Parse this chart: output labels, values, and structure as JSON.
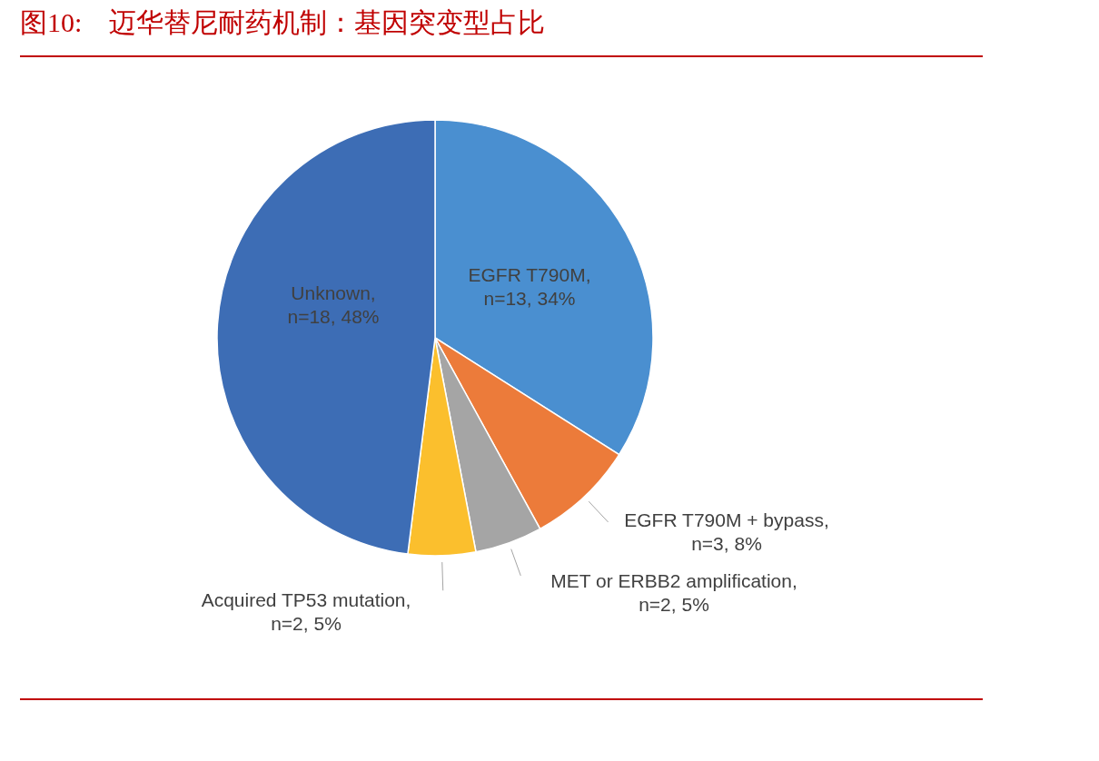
{
  "chart_data": {
    "type": "pie",
    "title": "图10:　迈华替尼耐药机制：基因突变型占比",
    "categories": [
      "EGFR T790M, n=13, 34%",
      "EGFR T790M + bypass, n=3, 8%",
      "MET or ERBB2 amplification, n=2, 5%",
      "Acquired TP53 mutation, n=2, 5%",
      "Unknown, n=18, 48%"
    ],
    "values": [
      34,
      8,
      5,
      5,
      48
    ],
    "colors": [
      "#4a8fd0",
      "#ec7b3a",
      "#a5a5a5",
      "#fbbf2d",
      "#3d6db5"
    ]
  }
}
